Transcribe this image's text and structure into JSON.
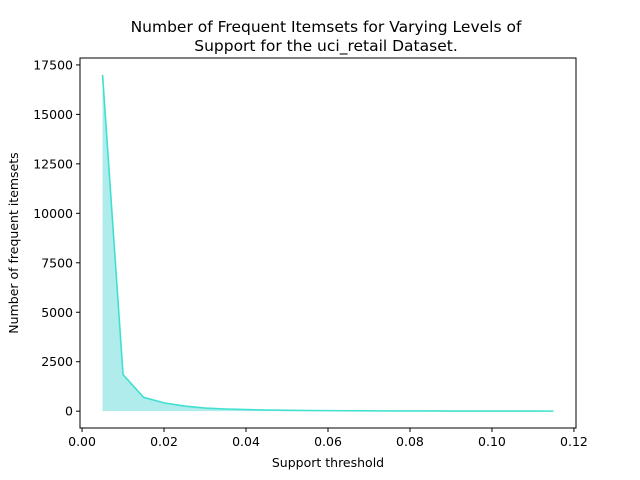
{
  "chart_data": {
    "type": "area",
    "title": [
      "Number of Frequent Itemsets for Varying Levels of",
      "Support for the uci_retail Dataset."
    ],
    "xlabel": "Support threshold",
    "ylabel": "Number of frequent itemsets",
    "xlim": [
      -0.0005,
      0.1205
    ],
    "ylim": [
      -850,
      17850
    ],
    "xticks": [
      0.0,
      0.02,
      0.04,
      0.06,
      0.08,
      0.1,
      0.12
    ],
    "xtick_labels": [
      "0.00",
      "0.02",
      "0.04",
      "0.06",
      "0.08",
      "0.10",
      "0.12"
    ],
    "yticks": [
      0,
      2500,
      5000,
      7500,
      10000,
      12500,
      15000,
      17500
    ],
    "ytick_labels": [
      "0",
      "2500",
      "5000",
      "7500",
      "10000",
      "12500",
      "15000",
      "17500"
    ],
    "grid": false,
    "line_color": "#40e0d0",
    "fill_color": "#b0ecec",
    "series": [
      {
        "x": [
          0.005,
          0.01,
          0.015,
          0.02,
          0.025,
          0.03,
          0.035,
          0.04,
          0.045,
          0.05,
          0.055,
          0.06,
          0.065,
          0.07,
          0.075,
          0.08,
          0.085,
          0.09,
          0.095,
          0.1,
          0.105,
          0.11,
          0.115
        ],
        "y": [
          17000,
          1850,
          700,
          420,
          260,
          160,
          110,
          80,
          60,
          45,
          35,
          28,
          22,
          18,
          15,
          12,
          10,
          8,
          7,
          6,
          5,
          4,
          3
        ]
      }
    ]
  }
}
